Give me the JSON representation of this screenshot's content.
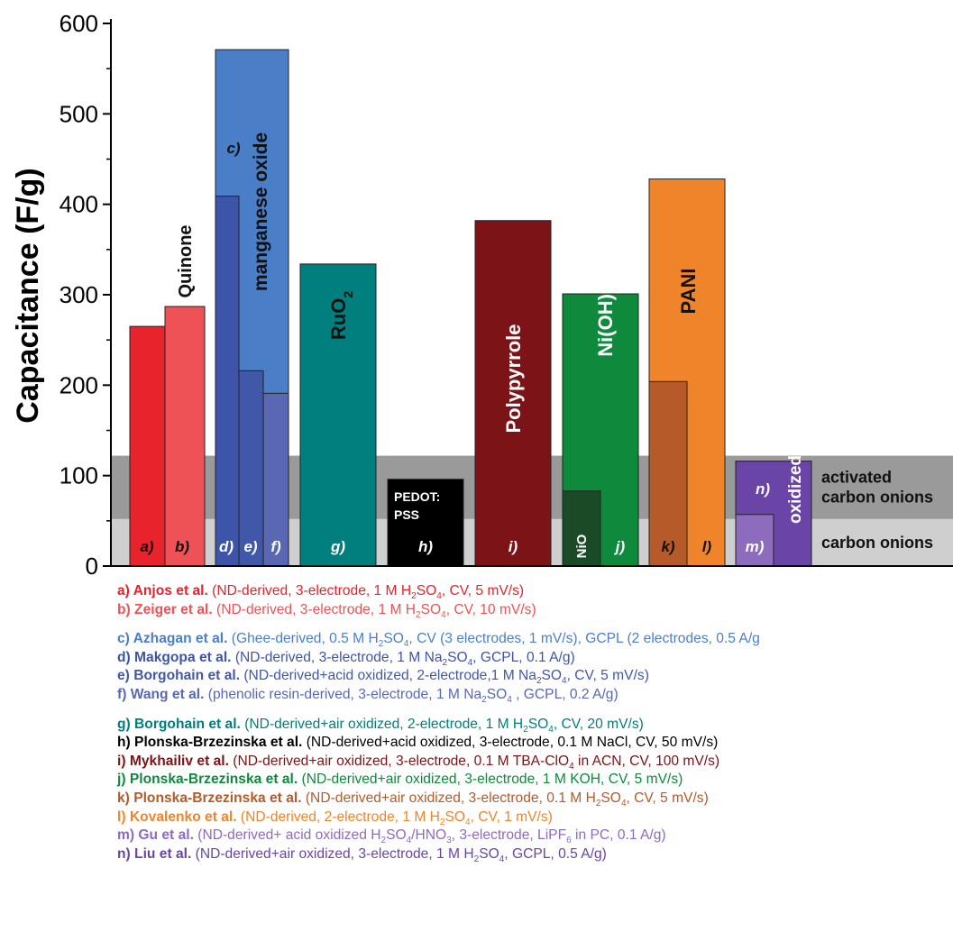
{
  "chart_data": {
    "type": "bar",
    "ylabel": "Capacitance (F/g)",
    "ylim": [
      0,
      600
    ],
    "yticks": [
      0,
      100,
      200,
      300,
      400,
      500,
      600
    ],
    "reference_bands": [
      {
        "label": "carbon onions",
        "from": 0,
        "to": 52,
        "color": "#cfcfcf"
      },
      {
        "label": "activated carbon onions",
        "from": 52,
        "to": 122,
        "color": "#9a9a9a",
        "label_lines": [
          "activated",
          "carbon onions"
        ]
      }
    ],
    "groups": [
      {
        "name": "Quinone",
        "rotated": true,
        "bars": [
          {
            "id": "a)",
            "value": 265,
            "color": "#e8232c"
          },
          {
            "id": "b)",
            "value": 287,
            "color": "#ee5256"
          }
        ]
      },
      {
        "name": "manganese oxide",
        "rotated": true,
        "bars": [
          {
            "id": "c)",
            "value": 571,
            "color": "#4a7fc8",
            "wide": true
          },
          {
            "id": "d)",
            "value": 409,
            "color": "#3d55a8"
          },
          {
            "id": "e)",
            "value": 216,
            "color": "#4158a9"
          },
          {
            "id": "f)",
            "value": 191,
            "color": "#5a68b3"
          }
        ]
      },
      {
        "name": "RuO2",
        "rotated": true,
        "bars": [
          {
            "id": "g)",
            "value": 334,
            "color": "#007f7e"
          }
        ]
      },
      {
        "name": "PEDOT:\nPSS",
        "rotated": false,
        "bars": [
          {
            "id": "h)",
            "value": 96,
            "color": "#000000"
          }
        ]
      },
      {
        "name": "Polypyrrole",
        "rotated": true,
        "bars": [
          {
            "id": "i)",
            "value": 382,
            "color": "#7c1317"
          }
        ]
      },
      {
        "name": "Ni(OH)2",
        "rotated": true,
        "bars": [
          {
            "id": "j)",
            "value": 301,
            "color": "#0f8a3c"
          },
          {
            "id": "NiO",
            "value": 83,
            "color": "#1b4a26"
          }
        ]
      },
      {
        "name": "PANI",
        "rotated": true,
        "bars": [
          {
            "id": "l)",
            "value": 428,
            "color": "#f0842a"
          },
          {
            "id": "k)",
            "value": 204,
            "color": "#b55a28"
          }
        ]
      },
      {
        "name": "oxidized",
        "rotated": true,
        "bars": [
          {
            "id": "n)",
            "value": 116,
            "color": "#6b44a8"
          },
          {
            "id": "m)",
            "value": 57,
            "color": "#8d6bbd"
          }
        ]
      }
    ]
  },
  "legend": [
    {
      "key": "a)",
      "author": "Anjos et al.",
      "pre": " (ND-derived, 3-electrode, 1 M H",
      "sub": "2",
      "post": "SO",
      "sub2": "4",
      "post2": ", CV, 5 mV/s)",
      "color": "#e8232c"
    },
    {
      "key": "b)",
      "author": "Zeiger et al.",
      "pre": " (ND-derived, 3-electrode, 1 M H",
      "sub": "2",
      "post": "SO",
      "sub2": "4",
      "post2": ", CV, 10 mV/s)",
      "color": "#ee5256"
    },
    {
      "gap": true
    },
    {
      "key": "c)",
      "author": "Azhagan et al.",
      "pre": " (Ghee-derived, 0.5 M H",
      "sub": "2",
      "post": "SO",
      "sub2": "4",
      "post2": ", CV (3 electrodes, 1 mV/s), GCPL (2 electrodes, 0.5 A/g",
      "color": "#4a7fc8"
    },
    {
      "key": "d)",
      "author": "Makgopa et al.",
      "pre": " (ND-derived, 3-electrode, 1 M Na",
      "sub": "2",
      "post": "SO",
      "sub2": "4",
      "post2": ", GCPL, 0.1 A/g)",
      "color": "#3d55a8"
    },
    {
      "key": "e)",
      "author": "Borgohain et al.",
      "pre": " (ND-derived+acid oxidized, 2-electrode,1 M Na",
      "sub": "2",
      "post": "SO",
      "sub2": "4",
      "post2": ", CV, 5 mV/s)",
      "color": "#4158a9"
    },
    {
      "key": "f)",
      "author": " Wang et al.",
      "pre": " (phenolic resin-derived, 3-electrode, 1 M Na",
      "sub": "2",
      "post": "SO",
      "sub2": "4",
      "post2": " , GCPL, 0.2 A/g)",
      "color": "#5a68b3"
    },
    {
      "gap": true
    },
    {
      "key": "g)",
      "author": "Borgohain et al.",
      "pre": " (ND-derived+air oxidized, 2-electrode, 1 M H",
      "sub": "2",
      "post": "SO",
      "sub2": "4",
      "post2": ", CV, 20 mV/s)",
      "color": "#007f7e"
    },
    {
      "key": "h)",
      "author": "Plonska-Brzezinska et al.",
      "pre": " (ND-derived+acid oxidized, 3-electrode, 0.1 M NaCl, CV, 50 mV/s)",
      "color": "#000000"
    },
    {
      "key": "i)",
      "author": "Mykhailiv et al.",
      "pre": " (ND-derived+air oxidized, 3-electrode, 0.1 M TBA-ClO",
      "sub": "4",
      "post": " in ACN, CV, 100 mV/s)",
      "color": "#7c1317"
    },
    {
      "key": "j)",
      "author": " Plonska-Brzezinska  et al.",
      "pre": " (ND-derived+air oxidized, 3-electrode, 1 M KOH, CV, 5 mV/s)",
      "color": "#0f8a3c"
    },
    {
      "key": "k)",
      "author": "Plonska-Brzezinska  et al.",
      "pre": " (ND-derived+air oxidized, 3-electrode, 0.1 M H",
      "sub": "2",
      "post": "SO",
      "sub2": "4",
      "post2": ", CV, 5 mV/s)",
      "color": "#b55a28"
    },
    {
      "key": "l)",
      "author": "Kovalenko et al.",
      "pre": " (ND-derived, 2-electrode, 1 M H",
      "sub": "2",
      "post": "SO",
      "sub2": "4",
      "post2": ", CV, 1 mV/s)",
      "color": "#f0842a"
    },
    {
      "key": "m)",
      "author": "Gu et al.",
      "pre": " (ND-derived+ acid oxidized H",
      "sub": "2",
      "post": "SO",
      "sub2": "4",
      "post2": "/HNO",
      "sub3": "3",
      "post3": ", 3-electrode, LiPF",
      "sub4": "6",
      "post4": " in PC, 0.1 A/g)",
      "color": "#8d6bbd"
    },
    {
      "key": "n)",
      "author": " Liu et al.",
      "pre": " (ND-derived+air oxidized, 3-electrode, 1 M H",
      "sub": "2",
      "post": "SO",
      "sub2": "4",
      "post2": ", GCPL, 0.5 A/g)",
      "color": "#6b44a8"
    }
  ]
}
